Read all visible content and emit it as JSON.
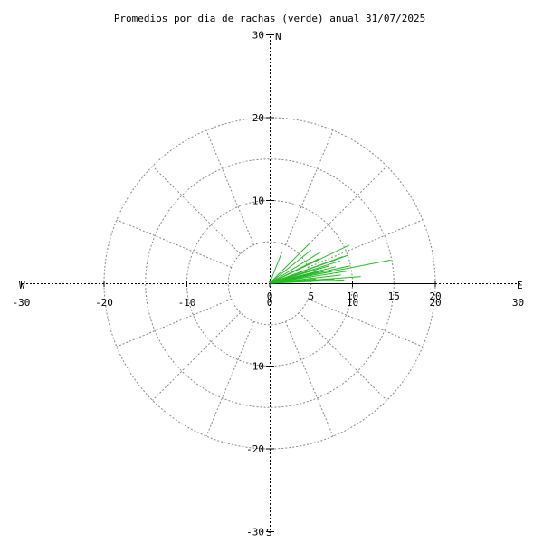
{
  "chart_data": {
    "type": "scatter",
    "title": "Promedios por dia de rachas (verde) anual 31/07/2025",
    "xlim": [
      -30,
      30
    ],
    "ylim": [
      -30,
      30
    ],
    "direction_labels": {
      "north": "N",
      "south": "S",
      "east": "E",
      "west": "W"
    },
    "x_axis_ticks": [
      "-30",
      "-20",
      "-10",
      "0",
      "10",
      "20",
      "30"
    ],
    "y_axis_ticks": [
      "30",
      "20",
      "10",
      "0",
      "-10",
      "-20",
      "-30"
    ],
    "radial_ticks": [
      "0",
      "5",
      "10",
      "15",
      "20"
    ],
    "grid": true,
    "colors": {
      "series": "#22bb22",
      "axes": "#000000",
      "grid": "#888888"
    },
    "series": [
      {
        "values": [
          {
            "x": 1.5,
            "y": 3.8
          },
          {
            "x": 4.8,
            "y": 4.8
          },
          {
            "x": 5.0,
            "y": 4.0
          },
          {
            "x": 9.6,
            "y": 4.6
          },
          {
            "x": 6.2,
            "y": 3.8
          },
          {
            "x": 8.8,
            "y": 3.2
          },
          {
            "x": 9.5,
            "y": 3.4
          },
          {
            "x": 6.0,
            "y": 3.0
          },
          {
            "x": 8.5,
            "y": 2.7
          },
          {
            "x": 14.6,
            "y": 2.8
          },
          {
            "x": 9.7,
            "y": 2.1
          },
          {
            "x": 8.0,
            "y": 2.0
          },
          {
            "x": 7.2,
            "y": 2.1
          },
          {
            "x": 9.6,
            "y": 1.5
          },
          {
            "x": 7.5,
            "y": 1.4
          },
          {
            "x": 6.0,
            "y": 1.4
          },
          {
            "x": 8.6,
            "y": 1.0
          },
          {
            "x": 11.0,
            "y": 0.8
          },
          {
            "x": 7.8,
            "y": 0.5
          },
          {
            "x": 9.0,
            "y": 0.4
          },
          {
            "x": 5.6,
            "y": 0.5
          }
        ]
      }
    ]
  }
}
